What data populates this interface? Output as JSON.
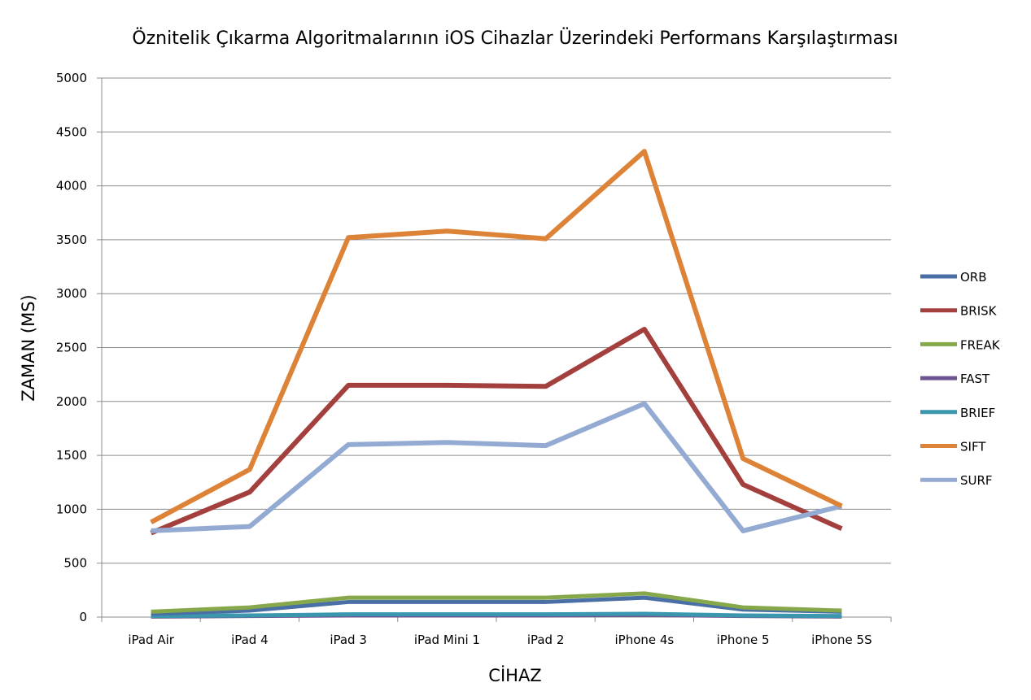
{
  "chart_data": {
    "type": "line",
    "title": "Öznitelik Çıkarma Algoritmalarının iOS Cihazlar Üzerindeki Performans Karşılaştırması",
    "xlabel": "CİHAZ",
    "ylabel": "ZAMAN (MS)",
    "ylim": [
      0,
      5000
    ],
    "yticks": [
      0,
      500,
      1000,
      1500,
      2000,
      2500,
      3000,
      3500,
      4000,
      4500,
      5000
    ],
    "grid": "horizontal",
    "legend_position": "right",
    "categories": [
      "iPad Air",
      "iPad 4",
      "iPad 3",
      "iPad Mini 1",
      "iPad 2",
      "iPhone 4s",
      "iPhone 5",
      "iPhone 5S"
    ],
    "series": [
      {
        "name": "ORB",
        "color": "#4a6fa5",
        "values": [
          30,
          60,
          140,
          140,
          140,
          180,
          70,
          50
        ]
      },
      {
        "name": "BRISK",
        "color": "#a33f3c",
        "values": [
          780,
          1160,
          2150,
          2150,
          2140,
          2670,
          1230,
          820
        ]
      },
      {
        "name": "FREAK",
        "color": "#86a84a",
        "values": [
          50,
          90,
          180,
          180,
          180,
          220,
          90,
          60
        ]
      },
      {
        "name": "FAST",
        "color": "#6d5390",
        "values": [
          5,
          10,
          15,
          15,
          15,
          20,
          10,
          5
        ]
      },
      {
        "name": "BRIEF",
        "color": "#3a97ae",
        "values": [
          10,
          15,
          25,
          25,
          25,
          30,
          15,
          10
        ]
      },
      {
        "name": "SIFT",
        "color": "#dd8337",
        "values": [
          880,
          1370,
          3520,
          3580,
          3510,
          4320,
          1470,
          1030
        ]
      },
      {
        "name": "SURF",
        "color": "#93aad2",
        "values": [
          800,
          840,
          1600,
          1620,
          1590,
          1980,
          800,
          1030
        ]
      }
    ]
  }
}
